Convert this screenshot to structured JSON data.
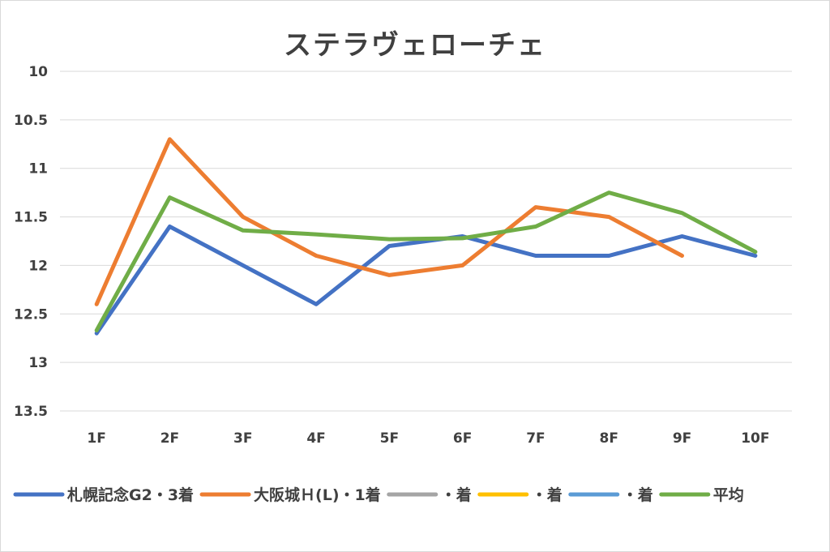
{
  "chart_data": {
    "type": "line",
    "title": "ステラヴェローチェ",
    "xlabel": "",
    "ylabel": "",
    "categories": [
      "1F",
      "2F",
      "3F",
      "4F",
      "5F",
      "6F",
      "7F",
      "8F",
      "9F",
      "10F"
    ],
    "ylim": [
      10,
      13.5
    ],
    "y_reversed": true,
    "y_ticks": [
      "10",
      "10.5",
      "11",
      "11.5",
      "12",
      "12.5",
      "13",
      "13.5"
    ],
    "grid": true,
    "legend_position": "bottom",
    "series": [
      {
        "name": "札幌記念G2・3着",
        "color": "#4472C4",
        "values": [
          12.7,
          11.6,
          12.0,
          12.4,
          11.8,
          11.7,
          11.9,
          11.9,
          11.7,
          11.9
        ]
      },
      {
        "name": "大阪城Ｈ(L)・1着",
        "color": "#ED7D31",
        "values": [
          12.4,
          10.7,
          11.5,
          11.9,
          12.1,
          12.0,
          11.4,
          11.5,
          11.9,
          null
        ]
      },
      {
        "name": "・着",
        "color": "#A5A5A5",
        "values": [
          null,
          null,
          null,
          null,
          null,
          null,
          null,
          null,
          null,
          null
        ]
      },
      {
        "name": "・着",
        "color": "#FFC000",
        "values": [
          null,
          null,
          null,
          null,
          null,
          null,
          null,
          null,
          null,
          null
        ]
      },
      {
        "name": "・着",
        "color": "#5B9BD5",
        "values": [
          null,
          null,
          null,
          null,
          null,
          null,
          null,
          null,
          null,
          null
        ]
      },
      {
        "name": "平均",
        "color": "#70AD47",
        "values": [
          12.67,
          11.3,
          11.64,
          11.68,
          11.73,
          11.72,
          11.6,
          11.25,
          11.46,
          11.86
        ]
      }
    ]
  }
}
